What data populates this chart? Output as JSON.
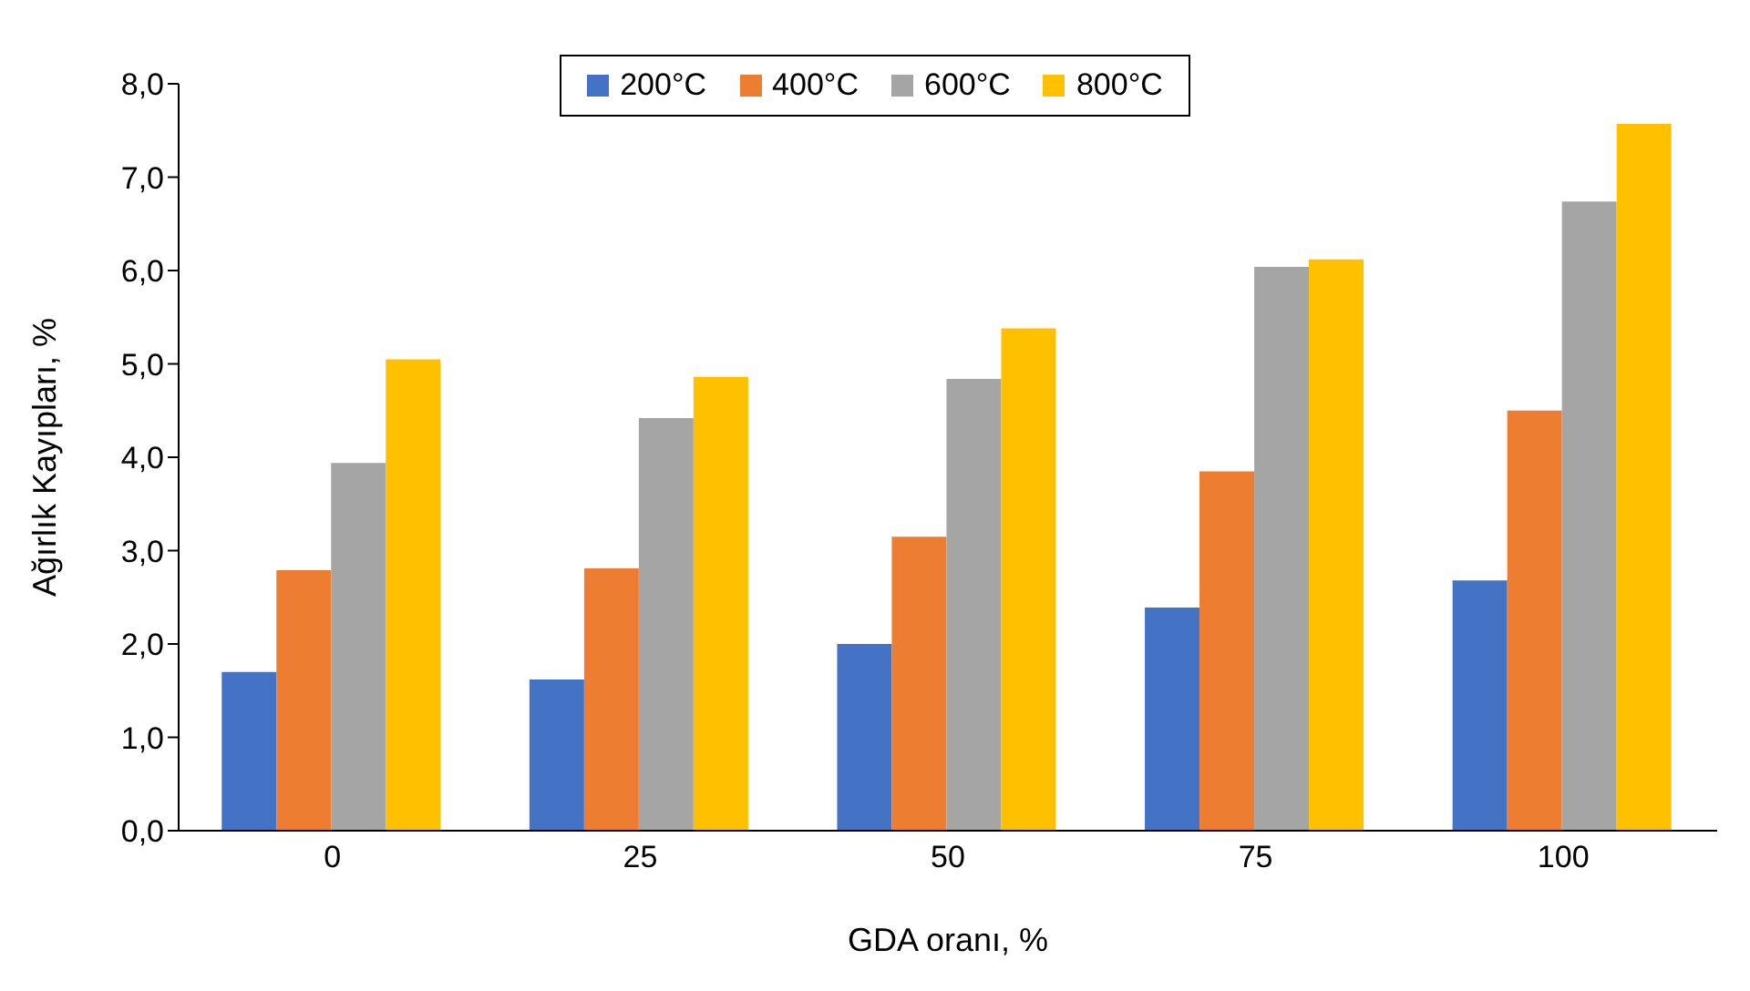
{
  "chart_data": {
    "type": "bar",
    "xlabel": "GDA oranı, %",
    "ylabel": "Ağırlık Kayıpları, %",
    "categories": [
      "0",
      "25",
      "50",
      "75",
      "100"
    ],
    "series": [
      {
        "name": "200°C",
        "color": "#4472c4",
        "values": [
          1.7,
          1.62,
          2.0,
          2.39,
          2.68
        ]
      },
      {
        "name": "400°C",
        "color": "#ed7d31",
        "values": [
          2.79,
          2.81,
          3.15,
          3.85,
          4.5
        ]
      },
      {
        "name": "600°C",
        "color": "#a5a5a5",
        "values": [
          3.94,
          4.42,
          4.84,
          6.04,
          6.74
        ]
      },
      {
        "name": "800°C",
        "color": "#ffc000",
        "values": [
          5.05,
          4.86,
          5.38,
          6.12,
          7.57
        ]
      }
    ],
    "ylim": [
      0,
      8
    ],
    "yticks": [
      {
        "value": 0,
        "label": "0,0"
      },
      {
        "value": 1,
        "label": "1,0"
      },
      {
        "value": 2,
        "label": "2,0"
      },
      {
        "value": 3,
        "label": "3,0"
      },
      {
        "value": 4,
        "label": "4,0"
      },
      {
        "value": 5,
        "label": "5,0"
      },
      {
        "value": 6,
        "label": "6,0"
      },
      {
        "value": 7,
        "label": "7,0"
      },
      {
        "value": 8,
        "label": "8,0"
      }
    ],
    "legend": "top",
    "grid": false
  }
}
